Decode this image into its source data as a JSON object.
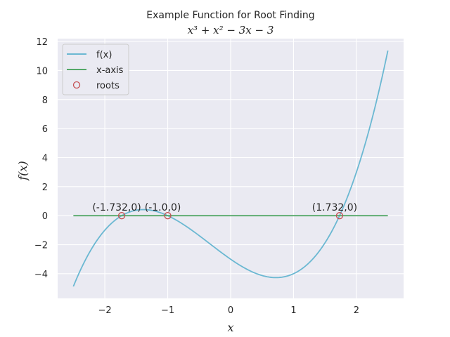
{
  "chart_data": {
    "type": "line",
    "title": "Example Function for Root Finding",
    "subtitle": "x³ + x² − 3x − 3",
    "xlabel": "x",
    "ylabel": "f(x)",
    "xlim": [
      -2.75,
      2.75
    ],
    "ylim": [
      -5.7,
      12.2
    ],
    "xticks": [
      -2,
      -1,
      0,
      1,
      2
    ],
    "xtick_labels": [
      "−2",
      "−1",
      "0",
      "1",
      "2"
    ],
    "yticks": [
      -4,
      -2,
      0,
      2,
      4,
      6,
      8,
      10,
      12
    ],
    "ytick_labels": [
      "−4",
      "−2",
      "0",
      "2",
      "4",
      "6",
      "8",
      "10",
      "12"
    ],
    "grid": true,
    "legend_position": "top-left",
    "series": [
      {
        "name": "f(x)",
        "color": "#6bb8d2",
        "x_range": [
          -2.5,
          2.5
        ],
        "expression": "x^3 + x^2 - 3x - 3",
        "coefficients": [
          1,
          1,
          -3,
          -3
        ]
      },
      {
        "name": "x-axis",
        "color": "#55a868",
        "x": [
          -2.5,
          2.5
        ],
        "y": [
          0,
          0
        ]
      },
      {
        "name": "roots",
        "color": "#c44e52",
        "marker": "open-circle",
        "x": [
          -1.732,
          -1.0,
          1.732
        ],
        "y": [
          0,
          0,
          0
        ]
      }
    ],
    "annotations": [
      {
        "text": "(-1.732,0)",
        "x": -1.732,
        "y": 0
      },
      {
        "text": "(-1.0,0)",
        "x": -1.0,
        "y": 0
      },
      {
        "text": "(1.732,0)",
        "x": 1.732,
        "y": 0
      }
    ],
    "colors": {
      "plot_background": "#eaeaf2",
      "grid": "#ffffff"
    }
  }
}
